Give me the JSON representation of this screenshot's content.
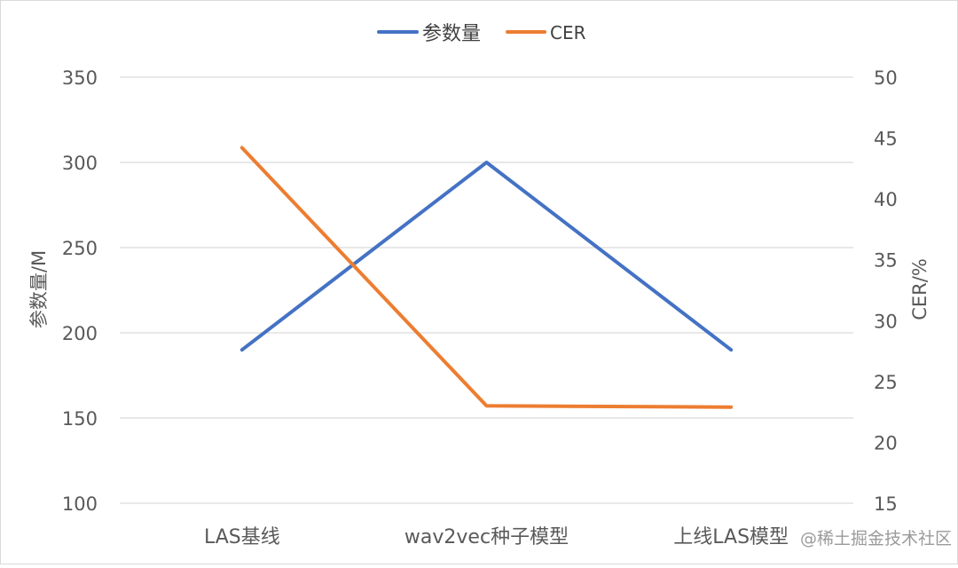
{
  "chart_data": {
    "type": "line",
    "categories": [
      "LAS基线",
      "wav2vec种子模型",
      "上线LAS模型"
    ],
    "series": [
      {
        "name": "参数量",
        "axis": "left",
        "color": "#4472C4",
        "values": [
          190,
          300,
          190
        ]
      },
      {
        "name": "CER",
        "axis": "right",
        "color": "#ED7D31",
        "values": [
          44.2,
          23.0,
          22.9
        ]
      }
    ],
    "y_left": {
      "label": "参数量/M",
      "ylim": [
        100,
        350
      ],
      "ticks": [
        100,
        150,
        200,
        250,
        300,
        350
      ]
    },
    "y_right": {
      "label": "CER/%",
      "ylim": [
        15,
        50
      ],
      "ticks": [
        15,
        20,
        25,
        30,
        35,
        40,
        45,
        50
      ]
    },
    "grid": true,
    "legend_position": "top-center"
  },
  "watermark": "@稀土掘金技术社区",
  "colors": {
    "grid": "#D9D9D9",
    "tick_text": "#595959",
    "border": "#D9D9D9"
  }
}
